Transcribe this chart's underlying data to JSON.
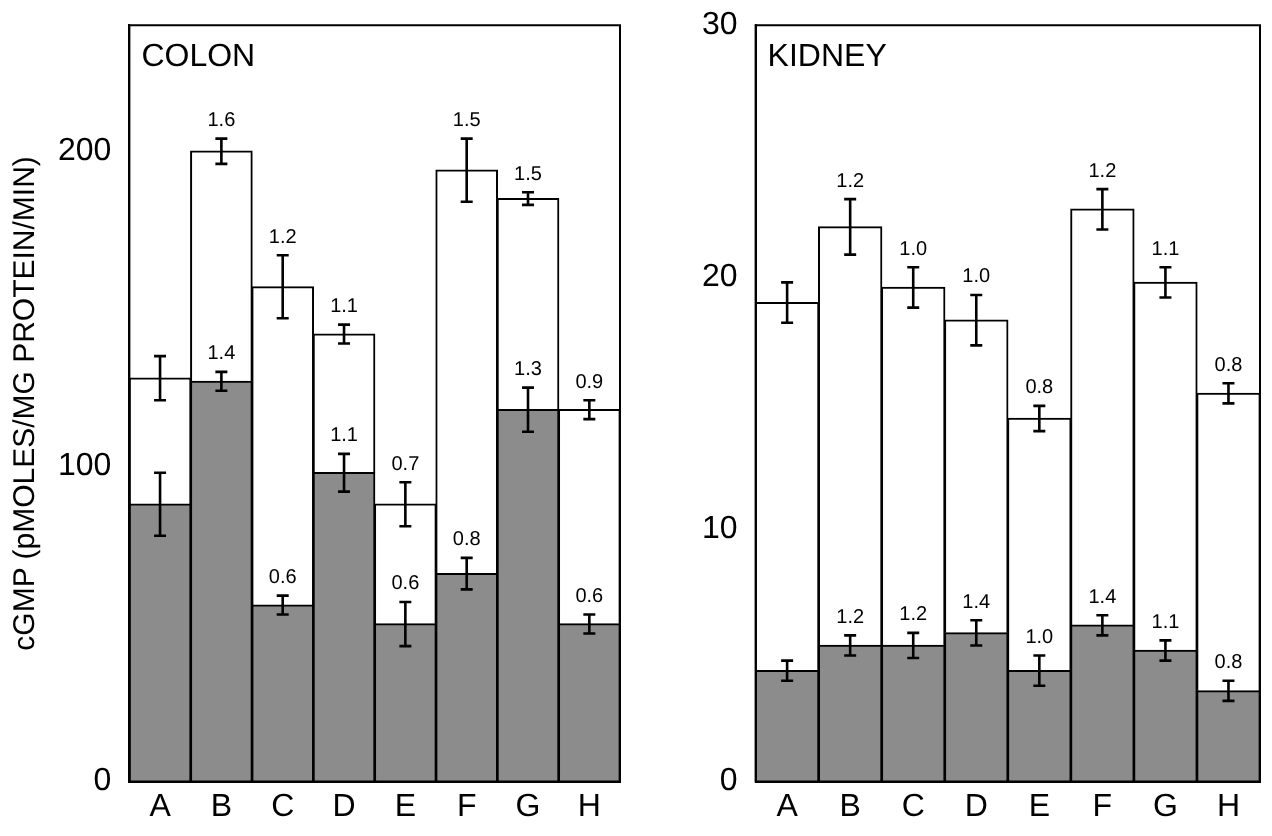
{
  "chart_data": [
    {
      "type": "bar",
      "title": "COLON",
      "ylabel": "cGMP (pMOLES/MG PROTEIN/MIN)",
      "categories": [
        "A",
        "B",
        "C",
        "D",
        "E",
        "F",
        "G",
        "H"
      ],
      "ylim": [
        0,
        240
      ],
      "yticks": [
        0,
        100,
        200
      ],
      "grid": false,
      "legend": false,
      "stacked": true,
      "series": [
        {
          "color": "#8c8c8c",
          "values": [
            88,
            127,
            56,
            98,
            50,
            66,
            118,
            50
          ],
          "errors": [
            10,
            3,
            3,
            6,
            7,
            5,
            7,
            3
          ]
        },
        {
          "color": "#ffffff",
          "values": [
            40,
            73,
            101,
            44,
            38,
            128,
            67,
            68
          ],
          "errors": [
            7,
            4,
            10,
            3,
            7,
            10,
            2,
            3
          ]
        }
      ],
      "annotations": [
        {
          "text": "1.6",
          "x": "B",
          "y": 200
        },
        {
          "text": "1.2",
          "x": "C",
          "y": 157
        },
        {
          "text": "1.1",
          "x": "D",
          "y": 142
        },
        {
          "text": "0.7",
          "x": "E",
          "y": 88
        },
        {
          "text": "1.5",
          "x": "F",
          "y": 194
        },
        {
          "text": "1.5",
          "x": "G",
          "y": 185
        },
        {
          "text": "0.9",
          "x": "H",
          "y": 118
        },
        {
          "text": "1.4",
          "x": "B",
          "y": 127
        },
        {
          "text": "0.6",
          "x": "C",
          "y": 56
        },
        {
          "text": "1.1",
          "x": "D",
          "y": 98
        },
        {
          "text": "0.6",
          "x": "E",
          "y": 50
        },
        {
          "text": "0.8",
          "x": "F",
          "y": 66
        },
        {
          "text": "1.3",
          "x": "G",
          "y": 118
        },
        {
          "text": "0.6",
          "x": "H",
          "y": 50
        }
      ]
    },
    {
      "type": "bar",
      "title": "KIDNEY",
      "categories": [
        "A",
        "B",
        "C",
        "D",
        "E",
        "F",
        "G",
        "H"
      ],
      "ylim": [
        0,
        30
      ],
      "yticks": [
        0,
        10,
        20,
        30
      ],
      "grid": false,
      "legend": false,
      "stacked": true,
      "series": [
        {
          "color": "#8c8c8c",
          "values": [
            4.4,
            5.4,
            5.4,
            5.9,
            4.4,
            6.2,
            5.2,
            3.6
          ],
          "errors": [
            0.4,
            0.4,
            0.5,
            0.5,
            0.6,
            0.4,
            0.4,
            0.4
          ]
        },
        {
          "color": "#ffffff",
          "values": [
            14.6,
            16.6,
            14.2,
            12.4,
            10.0,
            16.5,
            14.6,
            11.8
          ],
          "errors": [
            0.8,
            1.1,
            0.8,
            1.0,
            0.5,
            0.8,
            0.6,
            0.4
          ]
        }
      ],
      "annotations": [
        {
          "text": "1.2",
          "x": "B",
          "y": 22.0
        },
        {
          "text": "1.0",
          "x": "C",
          "y": 19.6
        },
        {
          "text": "1.0",
          "x": "D",
          "y": 18.3
        },
        {
          "text": "0.8",
          "x": "E",
          "y": 14.4
        },
        {
          "text": "1.2",
          "x": "F",
          "y": 22.7
        },
        {
          "text": "1.1",
          "x": "G",
          "y": 19.8
        },
        {
          "text": "0.8",
          "x": "H",
          "y": 15.4
        },
        {
          "text": "1.2",
          "x": "B",
          "y": 5.4
        },
        {
          "text": "1.2",
          "x": "C",
          "y": 5.4
        },
        {
          "text": "1.4",
          "x": "D",
          "y": 5.9
        },
        {
          "text": "1.0",
          "x": "E",
          "y": 4.4
        },
        {
          "text": "1.4",
          "x": "F",
          "y": 6.2
        },
        {
          "text": "1.1",
          "x": "G",
          "y": 5.2
        },
        {
          "text": "0.8",
          "x": "H",
          "y": 3.6
        }
      ]
    }
  ]
}
